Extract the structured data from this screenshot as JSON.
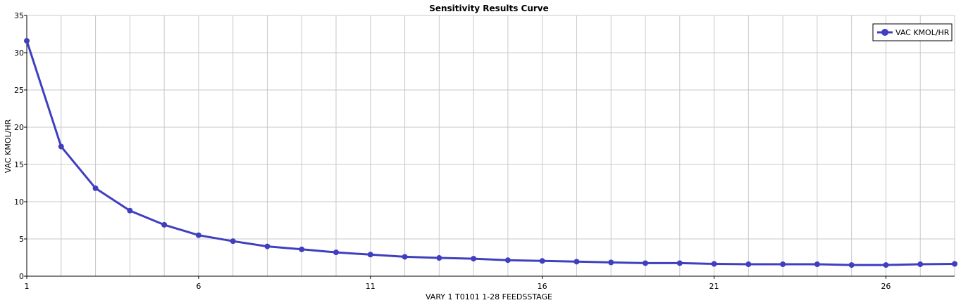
{
  "chart_data": {
    "type": "line",
    "title": "Sensitivity Results Curve",
    "xlabel": "VARY   1 T0101 1-28 FEEDSSTAGE",
    "ylabel": "VAC KMOL/HR",
    "xlim": [
      1,
      28
    ],
    "ylim": [
      0,
      35
    ],
    "x_ticks": [
      "1",
      "6",
      "11",
      "16",
      "21",
      "26"
    ],
    "y_ticks": [
      "0",
      "5",
      "10",
      "15",
      "20",
      "25",
      "30",
      "35"
    ],
    "grid": true,
    "legend_position": "top-right",
    "series": [
      {
        "name": "VAC KMOL/HR",
        "color": "#3f3fbf",
        "x": [
          1,
          2,
          3,
          4,
          5,
          6,
          7,
          8,
          9,
          10,
          11,
          12,
          13,
          14,
          15,
          16,
          17,
          18,
          19,
          20,
          21,
          22,
          23,
          24,
          25,
          26,
          27,
          28
        ],
        "y": [
          31.6,
          17.4,
          11.8,
          8.8,
          6.9,
          5.5,
          4.7,
          4.0,
          3.6,
          3.2,
          2.9,
          2.6,
          2.45,
          2.35,
          2.15,
          2.05,
          1.95,
          1.85,
          1.75,
          1.75,
          1.65,
          1.6,
          1.6,
          1.6,
          1.5,
          1.5,
          1.6,
          1.65
        ]
      }
    ]
  }
}
